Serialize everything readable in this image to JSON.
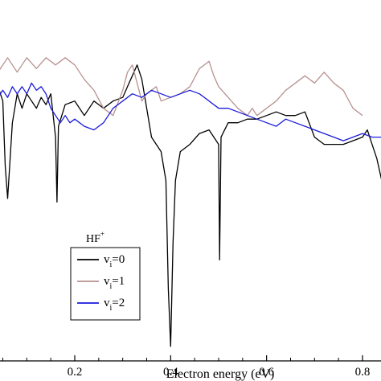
{
  "chart_data": {
    "type": "line",
    "xlabel": "Electron energy (eV)",
    "ylabel": "",
    "xlim": [
      0.0,
      0.85
    ],
    "ylim": [
      0.0,
      1.0
    ],
    "x_ticks": [
      0.2,
      0.4,
      0.6,
      0.8
    ],
    "x_tick_labels": [
      "0.2",
      "0.4",
      "0.6",
      "0.8"
    ],
    "y_ticks": [],
    "grid": false,
    "legend": {
      "position": "lower-left",
      "title": "HF",
      "title_superscript": "+",
      "entries": [
        {
          "prefix": "v",
          "subscript": "i",
          "suffix": "=0",
          "color": "#000000"
        },
        {
          "prefix": "v",
          "subscript": "i",
          "suffix": "=1",
          "color": "#b79290"
        },
        {
          "prefix": "v",
          "subscript": "i",
          "suffix": "=2",
          "color": "#1a1adb"
        }
      ]
    },
    "series": [
      {
        "color": "#000000",
        "points": [
          [
            0.0,
            0.78
          ],
          [
            0.01,
            0.82
          ],
          [
            0.015,
            0.9
          ],
          [
            0.02,
            0.72
          ],
          [
            0.025,
            0.62
          ],
          [
            0.03,
            0.69
          ],
          [
            0.04,
            0.76
          ],
          [
            0.05,
            0.72
          ],
          [
            0.055,
            0.54
          ],
          [
            0.06,
            0.45
          ],
          [
            0.07,
            0.66
          ],
          [
            0.08,
            0.74
          ],
          [
            0.09,
            0.7
          ],
          [
            0.1,
            0.74
          ],
          [
            0.11,
            0.72
          ],
          [
            0.12,
            0.7
          ],
          [
            0.13,
            0.73
          ],
          [
            0.14,
            0.71
          ],
          [
            0.15,
            0.74
          ],
          [
            0.16,
            0.62
          ],
          [
            0.163,
            0.44
          ],
          [
            0.166,
            0.65
          ],
          [
            0.18,
            0.71
          ],
          [
            0.2,
            0.72
          ],
          [
            0.22,
            0.68
          ],
          [
            0.24,
            0.72
          ],
          [
            0.26,
            0.7
          ],
          [
            0.28,
            0.72
          ],
          [
            0.3,
            0.73
          ],
          [
            0.31,
            0.76
          ],
          [
            0.32,
            0.79
          ],
          [
            0.33,
            0.82
          ],
          [
            0.34,
            0.78
          ],
          [
            0.35,
            0.7
          ],
          [
            0.36,
            0.62
          ],
          [
            0.37,
            0.6
          ],
          [
            0.38,
            0.58
          ],
          [
            0.39,
            0.5
          ],
          [
            0.395,
            0.2
          ],
          [
            0.4,
            0.04
          ],
          [
            0.405,
            0.33
          ],
          [
            0.41,
            0.5
          ],
          [
            0.42,
            0.58
          ],
          [
            0.44,
            0.6
          ],
          [
            0.46,
            0.63
          ],
          [
            0.48,
            0.64
          ],
          [
            0.5,
            0.6
          ],
          [
            0.502,
            0.28
          ],
          [
            0.505,
            0.62
          ],
          [
            0.52,
            0.66
          ],
          [
            0.54,
            0.66
          ],
          [
            0.56,
            0.67
          ],
          [
            0.58,
            0.67
          ],
          [
            0.6,
            0.68
          ],
          [
            0.62,
            0.69
          ],
          [
            0.64,
            0.68
          ],
          [
            0.66,
            0.68
          ],
          [
            0.68,
            0.69
          ],
          [
            0.7,
            0.62
          ],
          [
            0.72,
            0.6
          ],
          [
            0.74,
            0.6
          ],
          [
            0.76,
            0.6
          ],
          [
            0.78,
            0.61
          ],
          [
            0.8,
            0.62
          ],
          [
            0.81,
            0.64
          ],
          [
            0.82,
            0.6
          ],
          [
            0.83,
            0.56
          ],
          [
            0.84,
            0.5
          ],
          [
            0.85,
            0.55
          ]
        ]
      },
      {
        "color": "#b79290",
        "points": [
          [
            0.0,
            0.8
          ],
          [
            0.02,
            0.84
          ],
          [
            0.04,
            0.8
          ],
          [
            0.06,
            0.84
          ],
          [
            0.08,
            0.8
          ],
          [
            0.1,
            0.84
          ],
          [
            0.12,
            0.81
          ],
          [
            0.14,
            0.84
          ],
          [
            0.16,
            0.82
          ],
          [
            0.18,
            0.84
          ],
          [
            0.2,
            0.82
          ],
          [
            0.22,
            0.78
          ],
          [
            0.24,
            0.75
          ],
          [
            0.26,
            0.7
          ],
          [
            0.28,
            0.68
          ],
          [
            0.3,
            0.75
          ],
          [
            0.31,
            0.8
          ],
          [
            0.32,
            0.82
          ],
          [
            0.34,
            0.72
          ],
          [
            0.35,
            0.74
          ],
          [
            0.37,
            0.76
          ],
          [
            0.38,
            0.72
          ],
          [
            0.4,
            0.73
          ],
          [
            0.42,
            0.74
          ],
          [
            0.44,
            0.76
          ],
          [
            0.46,
            0.81
          ],
          [
            0.48,
            0.83
          ],
          [
            0.49,
            0.79
          ],
          [
            0.5,
            0.76
          ],
          [
            0.52,
            0.73
          ],
          [
            0.54,
            0.7
          ],
          [
            0.56,
            0.68
          ],
          [
            0.57,
            0.7
          ],
          [
            0.58,
            0.68
          ],
          [
            0.6,
            0.7
          ],
          [
            0.62,
            0.72
          ],
          [
            0.64,
            0.75
          ],
          [
            0.66,
            0.77
          ],
          [
            0.68,
            0.79
          ],
          [
            0.7,
            0.77
          ],
          [
            0.72,
            0.8
          ],
          [
            0.74,
            0.77
          ],
          [
            0.76,
            0.75
          ],
          [
            0.78,
            0.7
          ],
          [
            0.8,
            0.68
          ]
        ]
      },
      {
        "color": "#1a1adb",
        "points": [
          [
            0.0,
            0.7
          ],
          [
            0.01,
            0.74
          ],
          [
            0.02,
            0.72
          ],
          [
            0.03,
            0.74
          ],
          [
            0.04,
            0.73
          ],
          [
            0.05,
            0.75
          ],
          [
            0.06,
            0.73
          ],
          [
            0.07,
            0.76
          ],
          [
            0.08,
            0.74
          ],
          [
            0.09,
            0.76
          ],
          [
            0.1,
            0.74
          ],
          [
            0.11,
            0.77
          ],
          [
            0.12,
            0.75
          ],
          [
            0.13,
            0.76
          ],
          [
            0.14,
            0.74
          ],
          [
            0.15,
            0.7
          ],
          [
            0.16,
            0.68
          ],
          [
            0.17,
            0.66
          ],
          [
            0.18,
            0.68
          ],
          [
            0.19,
            0.66
          ],
          [
            0.2,
            0.67
          ],
          [
            0.22,
            0.65
          ],
          [
            0.24,
            0.64
          ],
          [
            0.26,
            0.66
          ],
          [
            0.28,
            0.7
          ],
          [
            0.3,
            0.72
          ],
          [
            0.32,
            0.74
          ],
          [
            0.34,
            0.73
          ],
          [
            0.36,
            0.75
          ],
          [
            0.38,
            0.74
          ],
          [
            0.4,
            0.73
          ],
          [
            0.42,
            0.74
          ],
          [
            0.44,
            0.75
          ],
          [
            0.46,
            0.74
          ],
          [
            0.48,
            0.72
          ],
          [
            0.5,
            0.7
          ],
          [
            0.52,
            0.7
          ],
          [
            0.54,
            0.69
          ],
          [
            0.56,
            0.68
          ],
          [
            0.58,
            0.67
          ],
          [
            0.6,
            0.66
          ],
          [
            0.62,
            0.65
          ],
          [
            0.64,
            0.67
          ],
          [
            0.66,
            0.66
          ],
          [
            0.68,
            0.65
          ],
          [
            0.7,
            0.64
          ],
          [
            0.72,
            0.63
          ],
          [
            0.74,
            0.62
          ],
          [
            0.76,
            0.61
          ],
          [
            0.78,
            0.62
          ],
          [
            0.8,
            0.63
          ],
          [
            0.82,
            0.62
          ],
          [
            0.84,
            0.62
          ],
          [
            0.85,
            0.63
          ]
        ]
      }
    ]
  }
}
